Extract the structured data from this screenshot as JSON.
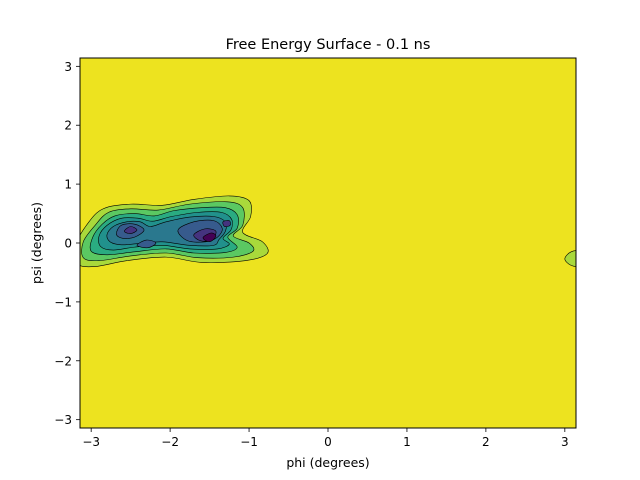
{
  "chart_data": {
    "type": "contour",
    "title": "Free Energy Surface - 0.1 ns",
    "xlabel": "phi (degrees)",
    "ylabel": "psi (degrees)",
    "xlim": [
      -3.1416,
      3.1416
    ],
    "ylim": [
      -3.1416,
      3.1416
    ],
    "xticks": [
      -3,
      -2,
      -1,
      0,
      1,
      2,
      3
    ],
    "yticks": [
      -3,
      -2,
      -1,
      0,
      1,
      2,
      3
    ],
    "grid": false,
    "legend": "none",
    "background_level_color": "#ede31f",
    "level_colors": [
      "#440154",
      "#45337f",
      "#375b8d",
      "#2a788e",
      "#21918c",
      "#2aab81",
      "#5bc862",
      "#a9d93b",
      "#ede31f"
    ],
    "filled_regions": [
      {
        "level": 7,
        "points": [
          [
            -3.18,
            -0.35
          ],
          [
            -3.2,
            -0.05
          ],
          [
            -3.05,
            0.32
          ],
          [
            -2.85,
            0.58
          ],
          [
            -2.5,
            0.66
          ],
          [
            -2.1,
            0.64
          ],
          [
            -1.7,
            0.74
          ],
          [
            -1.25,
            0.8
          ],
          [
            -1.0,
            0.72
          ],
          [
            -0.98,
            0.45
          ],
          [
            -1.08,
            0.18
          ],
          [
            -0.83,
            0.02
          ],
          [
            -0.77,
            -0.18
          ],
          [
            -1.05,
            -0.3
          ],
          [
            -1.6,
            -0.33
          ],
          [
            -2.05,
            -0.24
          ],
          [
            -2.55,
            -0.3
          ],
          [
            -2.95,
            -0.4
          ]
        ]
      },
      {
        "level": 6,
        "points": [
          [
            -3.1,
            -0.25
          ],
          [
            -3.1,
            0.02
          ],
          [
            -2.95,
            0.3
          ],
          [
            -2.78,
            0.52
          ],
          [
            -2.5,
            0.58
          ],
          [
            -2.15,
            0.56
          ],
          [
            -1.75,
            0.66
          ],
          [
            -1.28,
            0.7
          ],
          [
            -1.08,
            0.6
          ],
          [
            -1.08,
            0.3
          ],
          [
            -1.2,
            0.12
          ],
          [
            -1.0,
            0.0
          ],
          [
            -0.95,
            -0.14
          ],
          [
            -1.2,
            -0.24
          ],
          [
            -1.65,
            -0.25
          ],
          [
            -2.05,
            -0.17
          ],
          [
            -2.5,
            -0.22
          ],
          [
            -2.9,
            -0.3
          ]
        ]
      },
      {
        "level": 5,
        "points": [
          [
            -3.0,
            -0.14
          ],
          [
            -2.98,
            0.1
          ],
          [
            -2.86,
            0.32
          ],
          [
            -2.7,
            0.46
          ],
          [
            -2.45,
            0.5
          ],
          [
            -2.2,
            0.46
          ],
          [
            -1.95,
            0.55
          ],
          [
            -1.6,
            0.6
          ],
          [
            -1.3,
            0.6
          ],
          [
            -1.15,
            0.48
          ],
          [
            -1.15,
            0.25
          ],
          [
            -1.27,
            0.1
          ],
          [
            -1.15,
            -0.07
          ],
          [
            -1.3,
            -0.16
          ],
          [
            -1.7,
            -0.17
          ],
          [
            -2.05,
            -0.1
          ],
          [
            -2.45,
            -0.15
          ],
          [
            -2.8,
            -0.2
          ]
        ]
      },
      {
        "level": 4,
        "points": [
          [
            -2.88,
            -0.06
          ],
          [
            -2.9,
            0.12
          ],
          [
            -2.8,
            0.3
          ],
          [
            -2.62,
            0.42
          ],
          [
            -2.4,
            0.42
          ],
          [
            -2.22,
            0.37
          ],
          [
            -1.98,
            0.45
          ],
          [
            -1.65,
            0.52
          ],
          [
            -1.35,
            0.52
          ],
          [
            -1.22,
            0.4
          ],
          [
            -1.23,
            0.22
          ],
          [
            -1.33,
            0.08
          ],
          [
            -1.25,
            -0.02
          ],
          [
            -1.4,
            -0.1
          ],
          [
            -1.75,
            -0.1
          ],
          [
            -2.1,
            -0.04
          ],
          [
            -2.45,
            -0.07
          ],
          [
            -2.72,
            -0.12
          ]
        ]
      },
      {
        "level": 3,
        "points": [
          [
            -2.76,
            0.02
          ],
          [
            -2.8,
            0.14
          ],
          [
            -2.72,
            0.28
          ],
          [
            -2.55,
            0.36
          ],
          [
            -2.38,
            0.36
          ],
          [
            -2.25,
            0.28
          ],
          [
            -2.05,
            0.36
          ],
          [
            -1.75,
            0.44
          ],
          [
            -1.45,
            0.45
          ],
          [
            -1.3,
            0.36
          ],
          [
            -1.3,
            0.2
          ],
          [
            -1.38,
            0.06
          ],
          [
            -1.45,
            -0.04
          ],
          [
            -1.75,
            -0.04
          ],
          [
            -2.1,
            0.02
          ],
          [
            -2.4,
            -0.01
          ],
          [
            -2.62,
            -0.03
          ]
        ]
      },
      {
        "level": 2,
        "points": [
          [
            -2.68,
            0.15
          ],
          [
            -2.62,
            0.3
          ],
          [
            -2.45,
            0.32
          ],
          [
            -2.33,
            0.22
          ],
          [
            -2.45,
            0.1
          ],
          [
            -2.6,
            0.08
          ]
        ]
      },
      {
        "level": 2,
        "points": [
          [
            -2.42,
            -0.04
          ],
          [
            -2.3,
            0.05
          ],
          [
            -2.18,
            0.0
          ],
          [
            -2.28,
            -0.08
          ]
        ]
      },
      {
        "level": 2,
        "points": [
          [
            -1.9,
            0.22
          ],
          [
            -1.7,
            0.36
          ],
          [
            -1.45,
            0.38
          ],
          [
            -1.34,
            0.25
          ],
          [
            -1.4,
            0.1
          ],
          [
            -1.55,
            0.02
          ],
          [
            -1.78,
            0.04
          ]
        ]
      },
      {
        "level": 1,
        "points": [
          [
            -2.58,
            0.2
          ],
          [
            -2.5,
            0.28
          ],
          [
            -2.42,
            0.22
          ],
          [
            -2.5,
            0.16
          ]
        ]
      },
      {
        "level": 1,
        "points": [
          [
            -1.7,
            0.14
          ],
          [
            -1.56,
            0.24
          ],
          [
            -1.42,
            0.2
          ],
          [
            -1.48,
            0.05
          ],
          [
            -1.62,
            0.04
          ]
        ]
      },
      {
        "level": 1,
        "points": [
          [
            -1.33,
            0.36
          ],
          [
            -1.25,
            0.38
          ],
          [
            -1.24,
            0.3
          ],
          [
            -1.31,
            0.28
          ]
        ]
      },
      {
        "level": 0,
        "points": [
          [
            -1.58,
            0.1
          ],
          [
            -1.48,
            0.17
          ],
          [
            -1.42,
            0.12
          ],
          [
            -1.48,
            0.03
          ],
          [
            -1.55,
            0.04
          ]
        ]
      },
      {
        "level": 7,
        "points": [
          [
            3.08,
            -0.38
          ],
          [
            3.0,
            -0.27
          ],
          [
            3.08,
            -0.15
          ],
          [
            3.2,
            -0.15
          ],
          [
            3.2,
            -0.38
          ]
        ]
      }
    ]
  }
}
